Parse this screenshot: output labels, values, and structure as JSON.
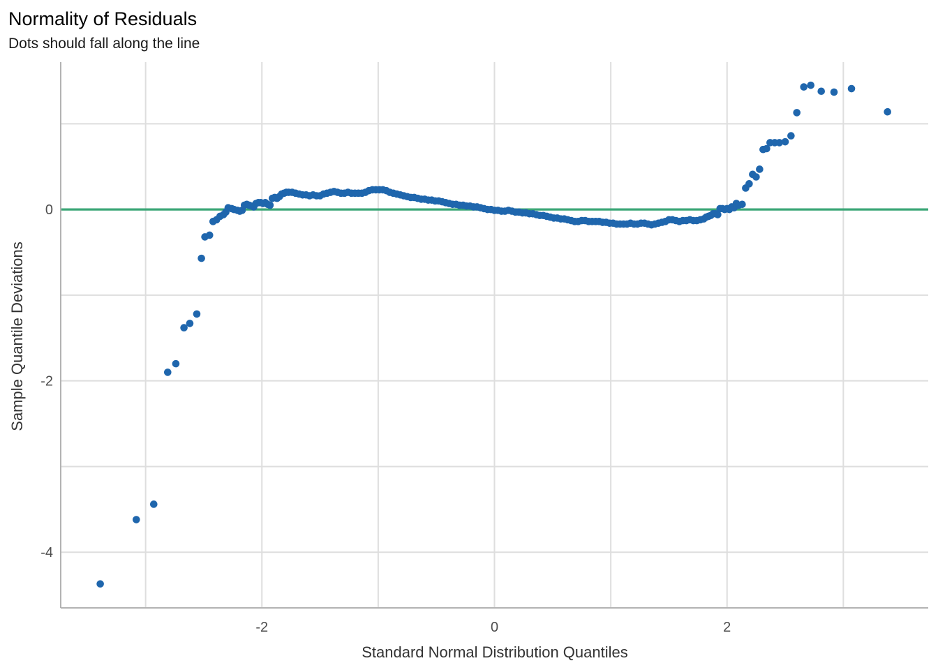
{
  "chart_data": {
    "type": "scatter",
    "title": "Normality of Residuals",
    "subtitle": "Dots should fall along the line",
    "xlabel": "Standard Normal Distribution Quantiles",
    "ylabel": "Sample Quantile Deviations",
    "xlim": [
      -3.73,
      3.73
    ],
    "ylim": [
      -4.65,
      1.72
    ],
    "x_ticks": [
      -2,
      0,
      2
    ],
    "x_tick_labels": [
      "-2",
      "0",
      "2"
    ],
    "y_ticks": [
      -4,
      -2,
      0
    ],
    "y_tick_labels": [
      "-4",
      "-2",
      "0"
    ],
    "grid": true,
    "reference_line": {
      "y": 0,
      "color": "#3aa676"
    },
    "point_color": "#1f66ad",
    "series": [
      {
        "points": [
          [
            -3.39,
            -4.37
          ],
          [
            -3.08,
            -3.62
          ],
          [
            -2.93,
            -3.44
          ],
          [
            -2.81,
            -1.9
          ],
          [
            -2.74,
            -1.8
          ],
          [
            -2.67,
            -1.38
          ],
          [
            -2.62,
            -1.33
          ],
          [
            -2.56,
            -1.22
          ],
          [
            -2.52,
            -0.57
          ],
          [
            -2.49,
            -0.32
          ],
          [
            -2.45,
            -0.3
          ],
          [
            -2.42,
            -0.14
          ],
          [
            -2.39,
            -0.12
          ],
          [
            -2.36,
            -0.08
          ],
          [
            -2.33,
            -0.06
          ],
          [
            -2.31,
            -0.03
          ],
          [
            -2.29,
            0.02
          ],
          [
            -2.26,
            0.01
          ],
          [
            -2.24,
            0.0
          ],
          [
            -2.21,
            -0.01
          ],
          [
            -2.19,
            -0.02
          ],
          [
            -2.17,
            -0.01
          ],
          [
            -2.15,
            0.05
          ],
          [
            -2.13,
            0.06
          ],
          [
            -2.11,
            0.05
          ],
          [
            -2.09,
            0.04
          ],
          [
            -2.07,
            0.03
          ],
          [
            -2.05,
            0.07
          ],
          [
            -2.03,
            0.08
          ],
          [
            -2.01,
            0.08
          ],
          [
            -1.99,
            0.07
          ],
          [
            -1.97,
            0.08
          ],
          [
            -1.95,
            0.06
          ],
          [
            -1.93,
            0.05
          ],
          [
            -1.91,
            0.13
          ],
          [
            -1.89,
            0.14
          ],
          [
            -1.87,
            0.13
          ],
          [
            -1.85,
            0.15
          ],
          [
            -1.83,
            0.18
          ],
          [
            -1.81,
            0.19
          ],
          [
            -1.79,
            0.2
          ],
          [
            -1.77,
            0.2
          ],
          [
            -1.74,
            0.2
          ],
          [
            -1.71,
            0.19
          ],
          [
            -1.68,
            0.18
          ],
          [
            -1.65,
            0.17
          ],
          [
            -1.62,
            0.17
          ],
          [
            -1.59,
            0.16
          ],
          [
            -1.56,
            0.17
          ],
          [
            -1.53,
            0.16
          ],
          [
            -1.5,
            0.16
          ],
          [
            -1.47,
            0.18
          ],
          [
            -1.44,
            0.19
          ],
          [
            -1.41,
            0.2
          ],
          [
            -1.38,
            0.21
          ],
          [
            -1.35,
            0.2
          ],
          [
            -1.32,
            0.19
          ],
          [
            -1.29,
            0.19
          ],
          [
            -1.26,
            0.2
          ],
          [
            -1.23,
            0.19
          ],
          [
            -1.2,
            0.19
          ],
          [
            -1.17,
            0.19
          ],
          [
            -1.14,
            0.19
          ],
          [
            -1.11,
            0.2
          ],
          [
            -1.08,
            0.22
          ],
          [
            -1.05,
            0.23
          ],
          [
            -1.02,
            0.23
          ],
          [
            -0.99,
            0.23
          ],
          [
            -0.96,
            0.23
          ],
          [
            -0.93,
            0.22
          ],
          [
            -0.9,
            0.2
          ],
          [
            -0.87,
            0.19
          ],
          [
            -0.84,
            0.18
          ],
          [
            -0.81,
            0.17
          ],
          [
            -0.78,
            0.16
          ],
          [
            -0.75,
            0.15
          ],
          [
            -0.72,
            0.14
          ],
          [
            -0.69,
            0.14
          ],
          [
            -0.66,
            0.13
          ],
          [
            -0.63,
            0.12
          ],
          [
            -0.6,
            0.12
          ],
          [
            -0.57,
            0.11
          ],
          [
            -0.54,
            0.11
          ],
          [
            -0.51,
            0.1
          ],
          [
            -0.48,
            0.1
          ],
          [
            -0.45,
            0.09
          ],
          [
            -0.42,
            0.08
          ],
          [
            -0.39,
            0.07
          ],
          [
            -0.36,
            0.06
          ],
          [
            -0.33,
            0.06
          ],
          [
            -0.3,
            0.05
          ],
          [
            -0.27,
            0.05
          ],
          [
            -0.24,
            0.04
          ],
          [
            -0.21,
            0.04
          ],
          [
            -0.18,
            0.03
          ],
          [
            -0.15,
            0.03
          ],
          [
            -0.12,
            0.02
          ],
          [
            -0.09,
            0.01
          ],
          [
            -0.06,
            0.0
          ],
          [
            -0.03,
            0.0
          ],
          [
            0.0,
            -0.01
          ],
          [
            0.03,
            -0.01
          ],
          [
            0.06,
            -0.02
          ],
          [
            0.09,
            -0.02
          ],
          [
            0.12,
            -0.01
          ],
          [
            0.15,
            -0.02
          ],
          [
            0.18,
            -0.03
          ],
          [
            0.21,
            -0.03
          ],
          [
            0.24,
            -0.04
          ],
          [
            0.27,
            -0.04
          ],
          [
            0.3,
            -0.05
          ],
          [
            0.33,
            -0.05
          ],
          [
            0.36,
            -0.06
          ],
          [
            0.39,
            -0.07
          ],
          [
            0.42,
            -0.07
          ],
          [
            0.45,
            -0.08
          ],
          [
            0.48,
            -0.09
          ],
          [
            0.51,
            -0.1
          ],
          [
            0.54,
            -0.1
          ],
          [
            0.57,
            -0.11
          ],
          [
            0.6,
            -0.11
          ],
          [
            0.63,
            -0.12
          ],
          [
            0.66,
            -0.13
          ],
          [
            0.69,
            -0.14
          ],
          [
            0.72,
            -0.14
          ],
          [
            0.75,
            -0.13
          ],
          [
            0.78,
            -0.13
          ],
          [
            0.81,
            -0.14
          ],
          [
            0.84,
            -0.14
          ],
          [
            0.87,
            -0.14
          ],
          [
            0.9,
            -0.14
          ],
          [
            0.93,
            -0.15
          ],
          [
            0.96,
            -0.15
          ],
          [
            0.99,
            -0.16
          ],
          [
            1.02,
            -0.16
          ],
          [
            1.05,
            -0.17
          ],
          [
            1.08,
            -0.17
          ],
          [
            1.11,
            -0.17
          ],
          [
            1.14,
            -0.17
          ],
          [
            1.17,
            -0.16
          ],
          [
            1.2,
            -0.17
          ],
          [
            1.23,
            -0.17
          ],
          [
            1.26,
            -0.16
          ],
          [
            1.29,
            -0.16
          ],
          [
            1.32,
            -0.17
          ],
          [
            1.35,
            -0.18
          ],
          [
            1.38,
            -0.17
          ],
          [
            1.41,
            -0.16
          ],
          [
            1.44,
            -0.15
          ],
          [
            1.47,
            -0.14
          ],
          [
            1.5,
            -0.12
          ],
          [
            1.53,
            -0.12
          ],
          [
            1.56,
            -0.13
          ],
          [
            1.59,
            -0.14
          ],
          [
            1.62,
            -0.13
          ],
          [
            1.65,
            -0.13
          ],
          [
            1.68,
            -0.12
          ],
          [
            1.71,
            -0.13
          ],
          [
            1.74,
            -0.13
          ],
          [
            1.77,
            -0.12
          ],
          [
            1.8,
            -0.11
          ],
          [
            1.82,
            -0.09
          ],
          [
            1.84,
            -0.08
          ],
          [
            1.86,
            -0.07
          ],
          [
            1.88,
            -0.05
          ],
          [
            1.9,
            -0.05
          ],
          [
            1.92,
            -0.06
          ],
          [
            1.94,
            0.01
          ],
          [
            1.96,
            0.01
          ],
          [
            1.98,
            0.0
          ],
          [
            2.0,
            0.01
          ],
          [
            2.02,
            0.0
          ],
          [
            2.04,
            0.03
          ],
          [
            2.06,
            0.02
          ],
          [
            2.08,
            0.07
          ],
          [
            2.1,
            0.05
          ],
          [
            2.13,
            0.06
          ],
          [
            2.16,
            0.25
          ],
          [
            2.19,
            0.3
          ],
          [
            2.22,
            0.41
          ],
          [
            2.25,
            0.38
          ],
          [
            2.28,
            0.47
          ],
          [
            2.31,
            0.7
          ],
          [
            2.34,
            0.71
          ],
          [
            2.37,
            0.78
          ],
          [
            2.41,
            0.78
          ],
          [
            2.45,
            0.78
          ],
          [
            2.5,
            0.79
          ],
          [
            2.55,
            0.86
          ],
          [
            2.6,
            1.13
          ],
          [
            2.66,
            1.43
          ],
          [
            2.72,
            1.45
          ],
          [
            2.81,
            1.38
          ],
          [
            2.92,
            1.37
          ],
          [
            3.07,
            1.41
          ],
          [
            3.38,
            1.14
          ]
        ]
      }
    ]
  }
}
